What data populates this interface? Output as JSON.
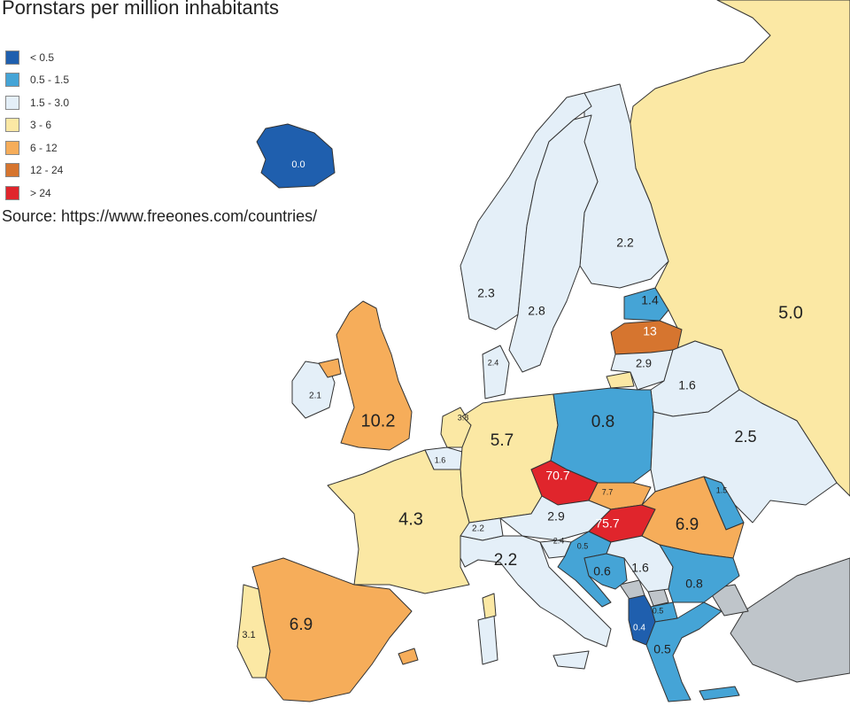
{
  "title": "Pornstars per million inhabitants",
  "source": "Source: https://www.freeones.com/countries/",
  "legend": [
    {
      "label": "< 0.5",
      "color": "#1f5fae"
    },
    {
      "label": "0.5 - 1.5",
      "color": "#45a4d6"
    },
    {
      "label": "1.5 - 3.0",
      "color": "#e4eff8"
    },
    {
      "label": "3 - 6",
      "color": "#fbe8a4"
    },
    {
      "label": "6 - 12",
      "color": "#f6ad5a"
    },
    {
      "label": "12 - 24",
      "color": "#d6752f"
    },
    {
      "label": "> 24",
      "color": "#e0252c"
    }
  ],
  "no_data_color": "#bfc5ca",
  "sea_color": "#ffffff",
  "countries": [
    {
      "name": "Iceland",
      "value": "0.0",
      "color": "#1f5fae"
    },
    {
      "name": "Russia",
      "value": "5.0",
      "color": "#fbe8a4"
    },
    {
      "name": "Finland",
      "value": "2.2",
      "color": "#e4eff8"
    },
    {
      "name": "Norway",
      "value": "2.3",
      "color": "#e4eff8"
    },
    {
      "name": "Sweden",
      "value": "2.8",
      "color": "#e4eff8"
    },
    {
      "name": "Estonia",
      "value": "1.4",
      "color": "#45a4d6"
    },
    {
      "name": "Latvia",
      "value": "13",
      "color": "#d6752f"
    },
    {
      "name": "Lithuania",
      "value": "2.9",
      "color": "#e4eff8"
    },
    {
      "name": "Belarus",
      "value": "1.6",
      "color": "#e4eff8"
    },
    {
      "name": "Ukraine",
      "value": "2.5",
      "color": "#e4eff8"
    },
    {
      "name": "Denmark",
      "value": "2.4",
      "color": "#e4eff8"
    },
    {
      "name": "Ireland",
      "value": "2.1",
      "color": "#e4eff8"
    },
    {
      "name": "United Kingdom",
      "value": "10.2",
      "color": "#f6ad5a"
    },
    {
      "name": "Netherlands",
      "value": "3.8",
      "color": "#fbe8a4"
    },
    {
      "name": "Belgium",
      "value": "1.6",
      "color": "#e4eff8"
    },
    {
      "name": "Germany",
      "value": "5.7",
      "color": "#fbe8a4"
    },
    {
      "name": "Poland",
      "value": "0.8",
      "color": "#45a4d6"
    },
    {
      "name": "Czech Republic",
      "value": "70.7",
      "color": "#e0252c"
    },
    {
      "name": "Slovakia",
      "value": "7.7",
      "color": "#f6ad5a"
    },
    {
      "name": "Hungary",
      "value": "75.7",
      "color": "#e0252c"
    },
    {
      "name": "Austria",
      "value": "2.9",
      "color": "#e4eff8"
    },
    {
      "name": "Switzerland",
      "value": "2.2",
      "color": "#e4eff8"
    },
    {
      "name": "France",
      "value": "4.3",
      "color": "#fbe8a4"
    },
    {
      "name": "Italy",
      "value": "2.2",
      "color": "#e4eff8"
    },
    {
      "name": "Slovenia",
      "value": "2.4",
      "color": "#e4eff8"
    },
    {
      "name": "Croatia",
      "value": "0.5",
      "color": "#45a4d6"
    },
    {
      "name": "Bosnia and Herzegovina",
      "value": "0.6",
      "color": "#45a4d6"
    },
    {
      "name": "Serbia",
      "value": "1.6",
      "color": "#e4eff8"
    },
    {
      "name": "Romania",
      "value": "6.9",
      "color": "#f6ad5a"
    },
    {
      "name": "Moldova",
      "value": "1.5",
      "color": "#45a4d6"
    },
    {
      "name": "Bulgaria",
      "value": "0.8",
      "color": "#45a4d6"
    },
    {
      "name": "North Macedonia",
      "value": "0.5",
      "color": "#45a4d6"
    },
    {
      "name": "Albania",
      "value": "0.4",
      "color": "#1f5fae"
    },
    {
      "name": "Greece",
      "value": "0.5",
      "color": "#45a4d6"
    },
    {
      "name": "Spain",
      "value": "6.9",
      "color": "#f6ad5a"
    },
    {
      "name": "Portugal",
      "value": "3.1",
      "color": "#fbe8a4"
    }
  ]
}
